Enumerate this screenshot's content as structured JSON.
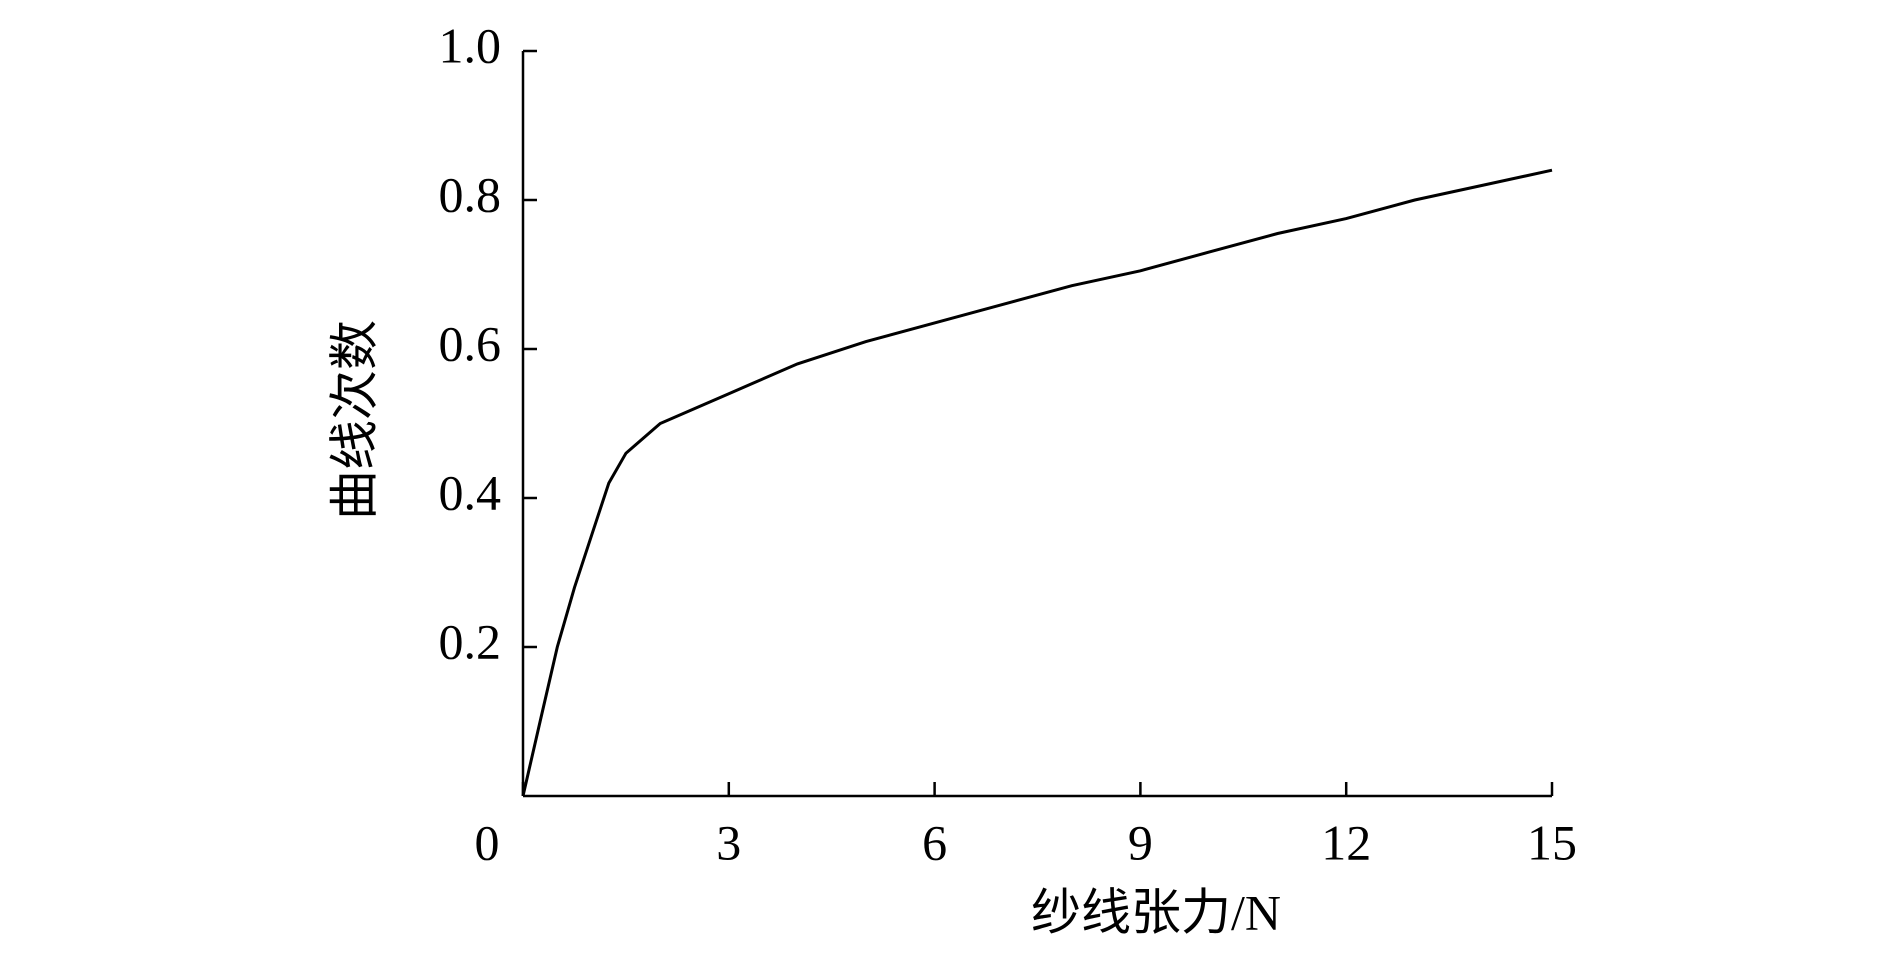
{
  "chart_data": {
    "type": "line",
    "x_label": "纱线张力/N",
    "y_label": "曲线次数",
    "xlim": [
      0,
      15
    ],
    "ylim": [
      0,
      1
    ],
    "xticks": [
      0,
      3,
      6,
      9,
      12,
      15
    ],
    "yticks": [
      0.2,
      0.4,
      0.6,
      0.8,
      {
        "value": 1,
        "label": "1.0"
      }
    ],
    "x": [
      0,
      0.25,
      0.5,
      0.75,
      1,
      1.25,
      1.5,
      2,
      2.5,
      3,
      4,
      5,
      6,
      7,
      8,
      9,
      10,
      11,
      12,
      13,
      14,
      15
    ],
    "series": [
      {
        "color": "#000000",
        "values": [
          0,
          0.1,
          0.2,
          0.28,
          0.35,
          0.42,
          0.46,
          0.5,
          0.52,
          0.54,
          0.58,
          0.61,
          0.635,
          0.66,
          0.685,
          0.705,
          0.73,
          0.755,
          0.775,
          0.8,
          0.82,
          0.84
        ]
      }
    ]
  }
}
